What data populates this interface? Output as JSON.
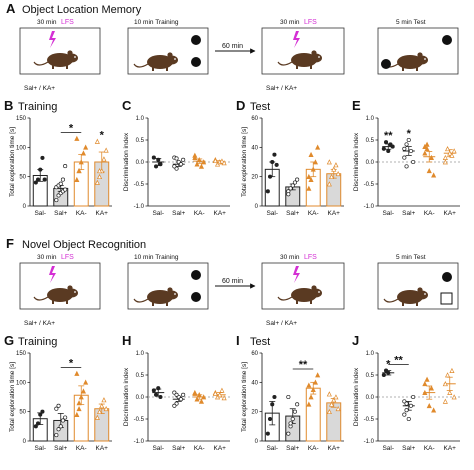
{
  "sections": [
    {
      "id": "A",
      "label": "A",
      "title": "Object Location Memory",
      "step1": {
        "time": "30 min",
        "lfs": "LFS",
        "group": "Sal+ / KA+"
      },
      "step2": {
        "text": "10 min Training"
      },
      "arrow": {
        "text": "60 min"
      },
      "step3": {
        "time": "30 min",
        "lfs": "LFS",
        "group": "Sal+ / KA+"
      },
      "step4": {
        "text": "5 min Test"
      }
    },
    {
      "id": "F",
      "label": "F",
      "title": "Novel Object Recognition",
      "step1": {
        "time": "30 min",
        "lfs": "LFS",
        "group": "Sal+ / KA+"
      },
      "step2": {
        "text": "10 min Training"
      },
      "arrow": {
        "text": "60 min"
      },
      "step3": {
        "time": "30 min",
        "lfs": "LFS",
        "group": "Sal+ / KA+"
      },
      "step4": {
        "text": "5 min Test"
      }
    }
  ],
  "colors": {
    "sal": "#222222",
    "ka": "#e08a2c",
    "grey_fill": "#d9d9d9",
    "lfs": "#d42fd4",
    "chance_line": "#999999"
  },
  "chart_data": [
    {
      "panel": "B",
      "title": "Training",
      "type": "bar",
      "ylabel": "Total exploration time [s]",
      "ylim": [
        0,
        150
      ],
      "yticks": [
        0,
        50,
        100,
        150
      ],
      "categories": [
        "Sal-",
        "Sal+",
        "KA-",
        "KA+"
      ],
      "values": [
        52,
        30,
        75,
        75
      ],
      "errors": [
        10,
        5,
        13,
        17
      ],
      "points": [
        [
          40,
          45,
          62,
          82,
          45
        ],
        [
          10,
          18,
          22,
          25,
          28,
          32,
          35,
          38,
          45,
          68
        ],
        [
          45,
          60,
          75,
          90,
          100,
          115,
          60
        ],
        [
          40,
          50,
          60,
          80,
          95,
          110,
          60
        ]
      ],
      "significance": [
        {
          "from": 1,
          "to": 2,
          "mark": "*"
        },
        {
          "from": 3,
          "to": 3,
          "mark": "*"
        }
      ]
    },
    {
      "panel": "C",
      "type": "scatter",
      "ylabel": "Discrimination index",
      "ylim": [
        -1,
        1
      ],
      "yticks": [
        -1.0,
        -0.5,
        0.0,
        0.5,
        1.0
      ],
      "categories": [
        "Sal-",
        "Sal+",
        "KA-",
        "KA+"
      ],
      "values": [
        0.0,
        -0.05,
        0.02,
        0.0
      ],
      "errors": [
        0.08,
        0.05,
        0.05,
        0.03
      ],
      "points": [
        [
          0.1,
          -0.1,
          0.05,
          -0.05
        ],
        [
          0.1,
          -0.15,
          0.0,
          -0.05,
          0.05,
          -0.1,
          0.08
        ],
        [
          0.1,
          -0.05,
          0.05,
          -0.1,
          0.0,
          0.15
        ],
        [
          0.05,
          -0.05,
          0.0,
          0.02,
          -0.02,
          0.03
        ]
      ]
    },
    {
      "panel": "D",
      "title": "Test",
      "type": "bar",
      "ylabel": "Total exploration time [s]",
      "ylim": [
        0,
        60
      ],
      "yticks": [
        0,
        20,
        40,
        60
      ],
      "categories": [
        "Sal-",
        "Sal+",
        "KA-",
        "KA+"
      ],
      "values": [
        25,
        13,
        25,
        22
      ],
      "errors": [
        5,
        2,
        5,
        3
      ],
      "points": [
        [
          10,
          20,
          30,
          35,
          28
        ],
        [
          10,
          12,
          14,
          16,
          18,
          8,
          12
        ],
        [
          12,
          18,
          25,
          30,
          40,
          20,
          35
        ],
        [
          15,
          20,
          25,
          28,
          22,
          30
        ]
      ]
    },
    {
      "panel": "E",
      "type": "scatter",
      "ylabel": "Discrimination index",
      "ylim": [
        -1,
        1
      ],
      "yticks": [
        -1.0,
        -0.5,
        0.0,
        0.5,
        1.0
      ],
      "categories": [
        "Sal-",
        "Sal+",
        "KA-",
        "KA+"
      ],
      "values": [
        0.35,
        0.25,
        0.12,
        0.2
      ],
      "errors": [
        0.06,
        0.1,
        0.12,
        0.08
      ],
      "points": [
        [
          0.3,
          0.45,
          0.25,
          0.4,
          0.35
        ],
        [
          0.1,
          0.4,
          0.5,
          0.25,
          0.0,
          0.3,
          -0.1
        ],
        [
          0.2,
          0.3,
          -0.2,
          0.1,
          -0.3,
          0.35,
          0.4
        ],
        [
          0.1,
          0.3,
          0.2,
          0.15,
          0.25,
          0.0
        ]
      ],
      "significance": [
        {
          "from": 0,
          "to": 0,
          "mark": "**"
        },
        {
          "from": 1,
          "to": 1,
          "mark": "*"
        }
      ]
    },
    {
      "panel": "G",
      "title": "Training",
      "type": "bar",
      "ylabel": "Total exploration time [s]",
      "ylim": [
        0,
        150
      ],
      "yticks": [
        0,
        50,
        100,
        150
      ],
      "categories": [
        "Sal-",
        "Sal+",
        "KA-",
        "KA+"
      ],
      "values": [
        38,
        35,
        78,
        55
      ],
      "errors": [
        10,
        12,
        16,
        8
      ],
      "points": [
        [
          25,
          30,
          45,
          50
        ],
        [
          10,
          20,
          25,
          35,
          40,
          55,
          60
        ],
        [
          45,
          55,
          75,
          85,
          100,
          115,
          65
        ],
        [
          40,
          50,
          60,
          70,
          55
        ]
      ],
      "significance": [
        {
          "from": 1,
          "to": 2,
          "mark": "*"
        }
      ]
    },
    {
      "panel": "H",
      "type": "scatter",
      "ylabel": "Discrimination index",
      "ylim": [
        -1,
        1
      ],
      "yticks": [
        -1.0,
        -0.5,
        0.0,
        0.5,
        1.0
      ],
      "categories": [
        "Sal-",
        "Sal+",
        "KA-",
        "KA+"
      ],
      "values": [
        0.1,
        -0.05,
        0.0,
        0.05
      ],
      "errors": [
        0.08,
        0.05,
        0.05,
        0.05
      ],
      "points": [
        [
          0.15,
          0.05,
          0.2,
          0.0
        ],
        [
          0.1,
          -0.15,
          0.0,
          -0.05,
          0.05,
          -0.2,
          0.05
        ],
        [
          0.1,
          -0.05,
          0.05,
          -0.1,
          0.0,
          0.08
        ],
        [
          0.1,
          0.0,
          0.05,
          0.15,
          -0.02,
          0.08
        ]
      ]
    },
    {
      "panel": "I",
      "title": "Test",
      "type": "bar",
      "ylabel": "Total exploration time [s]",
      "ylim": [
        0,
        60
      ],
      "yticks": [
        0,
        20,
        40,
        60
      ],
      "categories": [
        "Sal-",
        "Sal+",
        "KA-",
        "KA+"
      ],
      "values": [
        19,
        17,
        36,
        26
      ],
      "errors": [
        8,
        5,
        4,
        3
      ],
      "points": [
        [
          5,
          15,
          25,
          30
        ],
        [
          5,
          10,
          15,
          20,
          25,
          30,
          12
        ],
        [
          25,
          30,
          35,
          40,
          45,
          38
        ],
        [
          20,
          25,
          28,
          30,
          22,
          32
        ]
      ],
      "significance": [
        {
          "from": 1,
          "to": 2,
          "mark": "**"
        }
      ]
    },
    {
      "panel": "J",
      "type": "scatter",
      "ylabel": "Discrimination index",
      "ylim": [
        -1,
        1
      ],
      "yticks": [
        -1.0,
        -0.5,
        0.0,
        0.5,
        1.0
      ],
      "categories": [
        "Sal-",
        "Sal+",
        "KA-",
        "KA+"
      ],
      "values": [
        0.55,
        -0.2,
        0.1,
        0.3
      ],
      "errors": [
        0.05,
        0.1,
        0.15,
        0.15
      ],
      "points": [
        [
          0.5,
          0.6,
          0.55
        ],
        [
          -0.1,
          -0.3,
          -0.5,
          -0.2,
          0.0,
          -0.4,
          -0.15
        ],
        [
          0.1,
          0.4,
          -0.2,
          0.2,
          -0.3,
          0.3
        ],
        [
          0.3,
          0.5,
          0.1,
          0.6,
          0.0,
          -0.1
        ]
      ],
      "significance": [
        {
          "from": 0,
          "to": 0,
          "mark": "*"
        },
        {
          "from": 0,
          "to": 1,
          "mark": "**"
        }
      ]
    }
  ]
}
